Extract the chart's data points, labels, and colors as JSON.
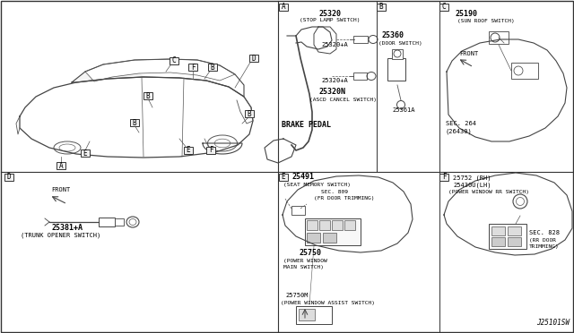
{
  "bg_color": "#ffffff",
  "part_number": "J25101SW",
  "lc": "#555555",
  "tc": "#000000",
  "fs": 5.0,
  "fm": 6.0,
  "parts": {
    "stop_lamp_num": "25320",
    "stop_lamp_name": "(STOP LAMP SWITCH)",
    "stop_lamp_a": "25320+A",
    "ascd_num": "25320N",
    "ascd_name": "(ASCD CANCEL SWITCH)",
    "brake_pedal": "BRAKE PEDAL",
    "door_num": "25360",
    "door_name": "(DOOR SWITCH)",
    "door_a": "25361A",
    "sun_num": "25190",
    "sun_name": "(SUN ROOF SWITCH)",
    "sec264_num": "SEC. 264",
    "sec264_name": "(26430)",
    "front": "FRONT",
    "trunk_num": "25381+A",
    "trunk_name": "(TRUNK OPENER SWITCH)",
    "seat_num": "25491",
    "seat_name": "(SEAT MEMORY SWITCH)",
    "sec809_num": "SEC. 809",
    "sec809_name": "(FR DOOR TRIMMING)",
    "pw_main_num": "25750",
    "pw_main_name": "(POWER WINDOW\nMAIN SWITCH)",
    "pw_assist_num": "25750M",
    "pw_assist_name": "(POWER WINDOW ASSIST SWITCH)",
    "pw_rr_rh": "25752 (RH)",
    "pw_rr_lh": "25430U(LH)",
    "pw_rr_name": "(POWER WINDOW RR SWITCH)",
    "sec828_num": "SEC. 828",
    "sec828_name": "(RR DOOR\nTRIMMING)"
  }
}
